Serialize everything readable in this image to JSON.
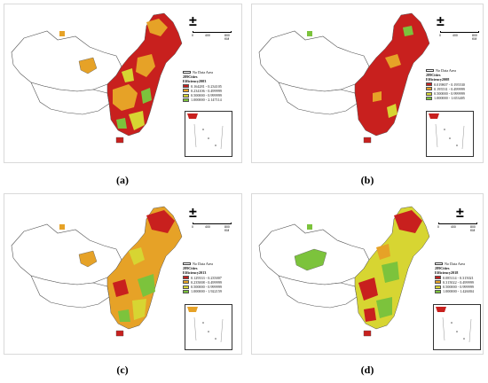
{
  "panels": [
    {
      "caption": "(a)",
      "legend": {
        "no_data": "No Data Area",
        "sites": "289Cities",
        "title": "Efficiency2003",
        "classes": [
          {
            "range": "0.164281 - 0.234105",
            "color": "#c8201e"
          },
          {
            "range": "0.234106 - 0.499999",
            "color": "#e6a227"
          },
          {
            "range": "0.500000 - 0.999999",
            "color": "#d7d532"
          },
          {
            "range": "1.000000 - 2.147114",
            "color": "#7cc33c"
          }
        ]
      },
      "scale": {
        "t0": "0",
        "t1": "400",
        "t2": "800 KM"
      }
    },
    {
      "caption": "(b)",
      "legend": {
        "no_data": "No Data Area",
        "sites": "289Cities",
        "title": "Efficiency2008",
        "classes": [
          {
            "range": "0.019807 - 0.195530",
            "color": "#c8201e"
          },
          {
            "range": "0.195531 - 0.499999",
            "color": "#e6a227"
          },
          {
            "range": "0.500000 - 0.999999",
            "color": "#d7d532"
          },
          {
            "range": "1.000000 - 1.653405",
            "color": "#7cc33c"
          }
        ]
      },
      "scale": {
        "t0": "0",
        "t1": "400",
        "t2": "800 KM"
      }
    },
    {
      "caption": "(c)",
      "legend": {
        "no_data": "No Data Area",
        "sites": "289Cities",
        "title": "Efficiency2013",
        "classes": [
          {
            "range": "0.129333 - 0.235007",
            "color": "#c8201e"
          },
          {
            "range": "0.235008 - 0.499999",
            "color": "#e6a227"
          },
          {
            "range": "0.500000 - 0.999999",
            "color": "#d7d532"
          },
          {
            "range": "1.000000 - 1.922159",
            "color": "#7cc33c"
          }
        ]
      },
      "scale": {
        "t0": "0",
        "t1": "400",
        "t2": "800 KM"
      }
    },
    {
      "caption": "(d)",
      "legend": {
        "no_data": "No Data Area",
        "sites": "289Cities",
        "title": "Efficiency2018",
        "classes": [
          {
            "range": "0.085114 - 0.315021",
            "color": "#c8201e"
          },
          {
            "range": "0.315022 - 0.499999",
            "color": "#e6a227"
          },
          {
            "range": "0.500000 - 0.999999",
            "color": "#d7d532"
          },
          {
            "range": "1.000000 - 1.426004",
            "color": "#7cc33c"
          }
        ]
      },
      "scale": {
        "t0": "0",
        "t1": "400",
        "t2": "800 KM"
      }
    }
  ],
  "north_arrow": "±"
}
